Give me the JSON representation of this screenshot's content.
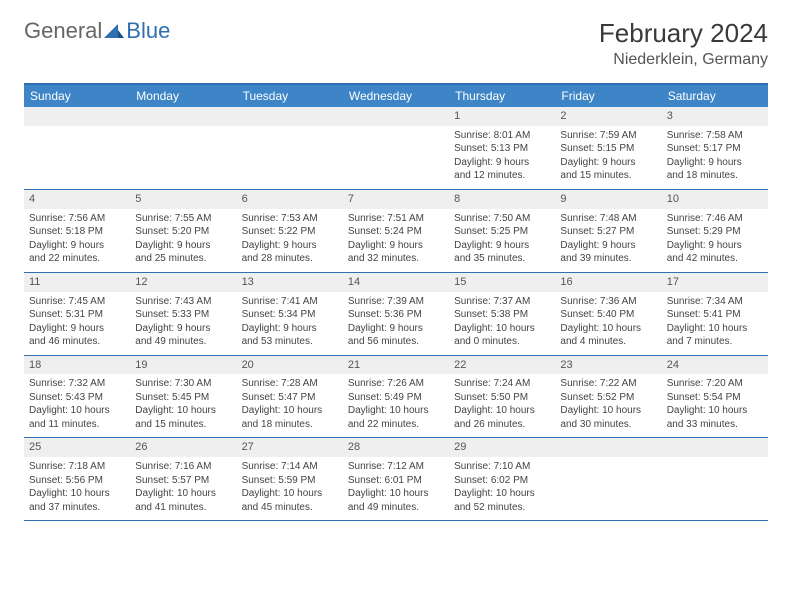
{
  "logo": {
    "part1": "General",
    "part2": "Blue"
  },
  "title": "February 2024",
  "location": "Niederklein, Germany",
  "accent_color": "#3d85c6",
  "border_color": "#2f6fb3",
  "gray_bg": "#efefef",
  "days_of_week": [
    "Sunday",
    "Monday",
    "Tuesday",
    "Wednesday",
    "Thursday",
    "Friday",
    "Saturday"
  ],
  "weeks": [
    [
      {
        "day": "",
        "sunrise": "",
        "sunset": "",
        "daylight1": "",
        "daylight2": ""
      },
      {
        "day": "",
        "sunrise": "",
        "sunset": "",
        "daylight1": "",
        "daylight2": ""
      },
      {
        "day": "",
        "sunrise": "",
        "sunset": "",
        "daylight1": "",
        "daylight2": ""
      },
      {
        "day": "",
        "sunrise": "",
        "sunset": "",
        "daylight1": "",
        "daylight2": ""
      },
      {
        "day": "1",
        "sunrise": "Sunrise: 8:01 AM",
        "sunset": "Sunset: 5:13 PM",
        "daylight1": "Daylight: 9 hours",
        "daylight2": "and 12 minutes."
      },
      {
        "day": "2",
        "sunrise": "Sunrise: 7:59 AM",
        "sunset": "Sunset: 5:15 PM",
        "daylight1": "Daylight: 9 hours",
        "daylight2": "and 15 minutes."
      },
      {
        "day": "3",
        "sunrise": "Sunrise: 7:58 AM",
        "sunset": "Sunset: 5:17 PM",
        "daylight1": "Daylight: 9 hours",
        "daylight2": "and 18 minutes."
      }
    ],
    [
      {
        "day": "4",
        "sunrise": "Sunrise: 7:56 AM",
        "sunset": "Sunset: 5:18 PM",
        "daylight1": "Daylight: 9 hours",
        "daylight2": "and 22 minutes."
      },
      {
        "day": "5",
        "sunrise": "Sunrise: 7:55 AM",
        "sunset": "Sunset: 5:20 PM",
        "daylight1": "Daylight: 9 hours",
        "daylight2": "and 25 minutes."
      },
      {
        "day": "6",
        "sunrise": "Sunrise: 7:53 AM",
        "sunset": "Sunset: 5:22 PM",
        "daylight1": "Daylight: 9 hours",
        "daylight2": "and 28 minutes."
      },
      {
        "day": "7",
        "sunrise": "Sunrise: 7:51 AM",
        "sunset": "Sunset: 5:24 PM",
        "daylight1": "Daylight: 9 hours",
        "daylight2": "and 32 minutes."
      },
      {
        "day": "8",
        "sunrise": "Sunrise: 7:50 AM",
        "sunset": "Sunset: 5:25 PM",
        "daylight1": "Daylight: 9 hours",
        "daylight2": "and 35 minutes."
      },
      {
        "day": "9",
        "sunrise": "Sunrise: 7:48 AM",
        "sunset": "Sunset: 5:27 PM",
        "daylight1": "Daylight: 9 hours",
        "daylight2": "and 39 minutes."
      },
      {
        "day": "10",
        "sunrise": "Sunrise: 7:46 AM",
        "sunset": "Sunset: 5:29 PM",
        "daylight1": "Daylight: 9 hours",
        "daylight2": "and 42 minutes."
      }
    ],
    [
      {
        "day": "11",
        "sunrise": "Sunrise: 7:45 AM",
        "sunset": "Sunset: 5:31 PM",
        "daylight1": "Daylight: 9 hours",
        "daylight2": "and 46 minutes."
      },
      {
        "day": "12",
        "sunrise": "Sunrise: 7:43 AM",
        "sunset": "Sunset: 5:33 PM",
        "daylight1": "Daylight: 9 hours",
        "daylight2": "and 49 minutes."
      },
      {
        "day": "13",
        "sunrise": "Sunrise: 7:41 AM",
        "sunset": "Sunset: 5:34 PM",
        "daylight1": "Daylight: 9 hours",
        "daylight2": "and 53 minutes."
      },
      {
        "day": "14",
        "sunrise": "Sunrise: 7:39 AM",
        "sunset": "Sunset: 5:36 PM",
        "daylight1": "Daylight: 9 hours",
        "daylight2": "and 56 minutes."
      },
      {
        "day": "15",
        "sunrise": "Sunrise: 7:37 AM",
        "sunset": "Sunset: 5:38 PM",
        "daylight1": "Daylight: 10 hours",
        "daylight2": "and 0 minutes."
      },
      {
        "day": "16",
        "sunrise": "Sunrise: 7:36 AM",
        "sunset": "Sunset: 5:40 PM",
        "daylight1": "Daylight: 10 hours",
        "daylight2": "and 4 minutes."
      },
      {
        "day": "17",
        "sunrise": "Sunrise: 7:34 AM",
        "sunset": "Sunset: 5:41 PM",
        "daylight1": "Daylight: 10 hours",
        "daylight2": "and 7 minutes."
      }
    ],
    [
      {
        "day": "18",
        "sunrise": "Sunrise: 7:32 AM",
        "sunset": "Sunset: 5:43 PM",
        "daylight1": "Daylight: 10 hours",
        "daylight2": "and 11 minutes."
      },
      {
        "day": "19",
        "sunrise": "Sunrise: 7:30 AM",
        "sunset": "Sunset: 5:45 PM",
        "daylight1": "Daylight: 10 hours",
        "daylight2": "and 15 minutes."
      },
      {
        "day": "20",
        "sunrise": "Sunrise: 7:28 AM",
        "sunset": "Sunset: 5:47 PM",
        "daylight1": "Daylight: 10 hours",
        "daylight2": "and 18 minutes."
      },
      {
        "day": "21",
        "sunrise": "Sunrise: 7:26 AM",
        "sunset": "Sunset: 5:49 PM",
        "daylight1": "Daylight: 10 hours",
        "daylight2": "and 22 minutes."
      },
      {
        "day": "22",
        "sunrise": "Sunrise: 7:24 AM",
        "sunset": "Sunset: 5:50 PM",
        "daylight1": "Daylight: 10 hours",
        "daylight2": "and 26 minutes."
      },
      {
        "day": "23",
        "sunrise": "Sunrise: 7:22 AM",
        "sunset": "Sunset: 5:52 PM",
        "daylight1": "Daylight: 10 hours",
        "daylight2": "and 30 minutes."
      },
      {
        "day": "24",
        "sunrise": "Sunrise: 7:20 AM",
        "sunset": "Sunset: 5:54 PM",
        "daylight1": "Daylight: 10 hours",
        "daylight2": "and 33 minutes."
      }
    ],
    [
      {
        "day": "25",
        "sunrise": "Sunrise: 7:18 AM",
        "sunset": "Sunset: 5:56 PM",
        "daylight1": "Daylight: 10 hours",
        "daylight2": "and 37 minutes."
      },
      {
        "day": "26",
        "sunrise": "Sunrise: 7:16 AM",
        "sunset": "Sunset: 5:57 PM",
        "daylight1": "Daylight: 10 hours",
        "daylight2": "and 41 minutes."
      },
      {
        "day": "27",
        "sunrise": "Sunrise: 7:14 AM",
        "sunset": "Sunset: 5:59 PM",
        "daylight1": "Daylight: 10 hours",
        "daylight2": "and 45 minutes."
      },
      {
        "day": "28",
        "sunrise": "Sunrise: 7:12 AM",
        "sunset": "Sunset: 6:01 PM",
        "daylight1": "Daylight: 10 hours",
        "daylight2": "and 49 minutes."
      },
      {
        "day": "29",
        "sunrise": "Sunrise: 7:10 AM",
        "sunset": "Sunset: 6:02 PM",
        "daylight1": "Daylight: 10 hours",
        "daylight2": "and 52 minutes."
      },
      {
        "day": "",
        "sunrise": "",
        "sunset": "",
        "daylight1": "",
        "daylight2": ""
      },
      {
        "day": "",
        "sunrise": "",
        "sunset": "",
        "daylight1": "",
        "daylight2": ""
      }
    ]
  ]
}
